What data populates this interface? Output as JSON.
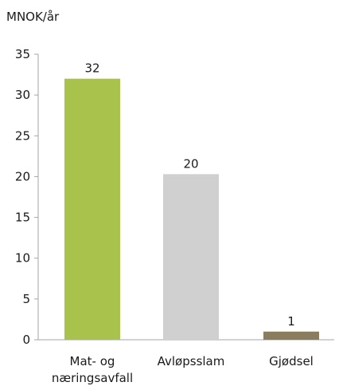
{
  "chart_data": {
    "type": "bar",
    "title": "",
    "ylabel": "MNOK/år",
    "xlabel": "",
    "categories": [
      [
        "Mat- og",
        "næringsavfall"
      ],
      [
        "Avløpsslam"
      ],
      [
        "Gjødsel"
      ]
    ],
    "values": [
      32,
      20.3,
      1
    ],
    "data_labels": [
      "32",
      "20",
      "1"
    ],
    "colors": [
      "#a9c24b",
      "#d0d0d0",
      "#8b7c5e"
    ],
    "ylim": [
      0,
      35
    ],
    "yticks": [
      "0",
      "5",
      "10",
      "15",
      "20",
      "25",
      "30",
      "35"
    ],
    "grid": false,
    "legend": "none"
  }
}
